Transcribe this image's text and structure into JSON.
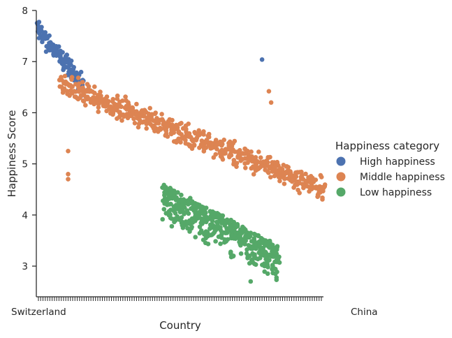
{
  "chart_data": {
    "type": "scatter",
    "subtype": "strip",
    "title": "",
    "xlabel": "Country",
    "ylabel": "Happiness Score",
    "ylim": [
      2.4,
      8.0
    ],
    "yticks": [
      3,
      4,
      5,
      6,
      7,
      8
    ],
    "grid": false,
    "legend": {
      "title": "Happiness category",
      "placement": "right",
      "entries": [
        {
          "name": "High happiness",
          "color": "#4c72b0"
        },
        {
          "name": "Middle happiness",
          "color": "#dd8452"
        },
        {
          "name": "Low happiness",
          "color": "#55a868"
        }
      ]
    },
    "x_visible_tick_labels": {
      "first": "Switzerland",
      "last": "China"
    },
    "category_count": 125,
    "series": [
      {
        "name": "High happiness",
        "color": "#4c72b0",
        "x_range": [
          0,
          19
        ],
        "y_start": 7.6,
        "y_end": 6.55
      },
      {
        "name": "Middle happiness",
        "color": "#dd8452",
        "x_range": [
          10,
          125
        ],
        "y_start": 6.55,
        "y_end": 4.5
      },
      {
        "name": "Low happiness",
        "color": "#55a868",
        "x_range": [
          55,
          105
        ],
        "y_start": 4.5,
        "y_end": 3.3
      }
    ],
    "notable_points": [
      {
        "series": "High happiness",
        "x_index": 98,
        "y": 7.04
      },
      {
        "series": "Middle happiness",
        "x_index": 13,
        "y": 5.25
      },
      {
        "series": "Middle happiness",
        "x_index": 13,
        "y": 4.8
      },
      {
        "series": "Middle happiness",
        "x_index": 13,
        "y": 4.7
      },
      {
        "series": "Middle happiness",
        "x_index": 101,
        "y": 6.42
      },
      {
        "series": "Middle happiness",
        "x_index": 102,
        "y": 6.2
      },
      {
        "series": "Low happiness",
        "x_index": 93,
        "y": 2.7
      },
      {
        "series": "Low happiness",
        "x_index": 63,
        "y": 3.8
      },
      {
        "series": "Low happiness",
        "x_index": 58,
        "y": 4.1
      }
    ]
  }
}
